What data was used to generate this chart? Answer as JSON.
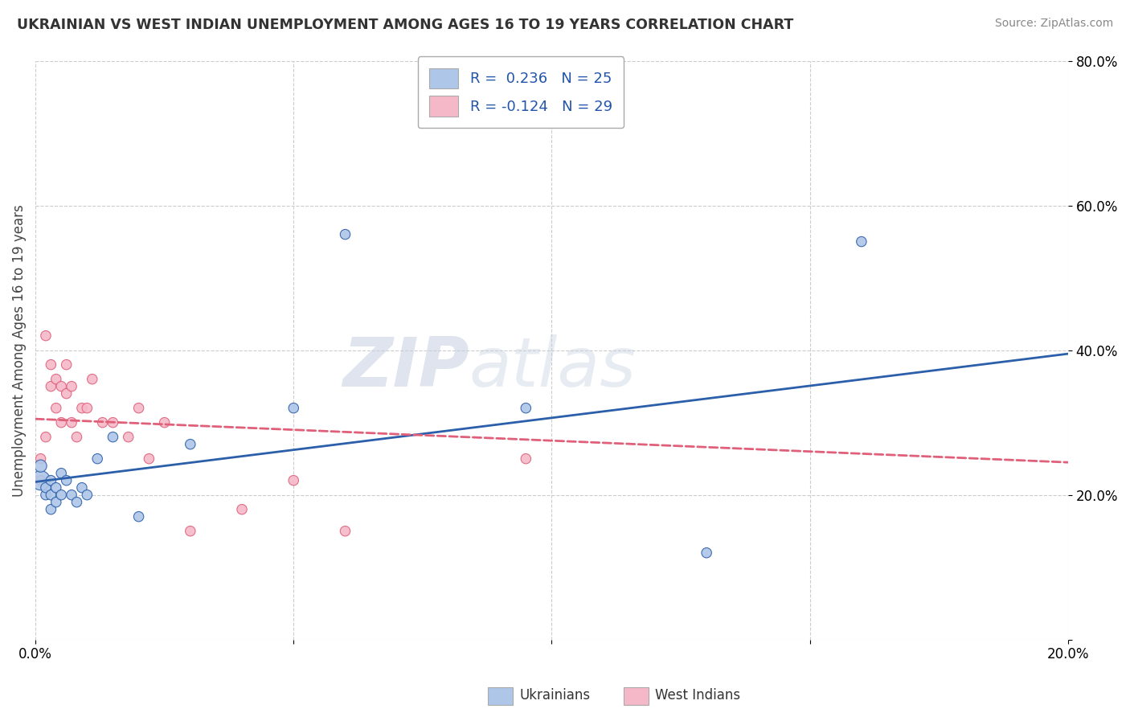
{
  "title": "UKRAINIAN VS WEST INDIAN UNEMPLOYMENT AMONG AGES 16 TO 19 YEARS CORRELATION CHART",
  "source": "Source: ZipAtlas.com",
  "ylabel": "Unemployment Among Ages 16 to 19 years",
  "xlabel_ukrainians": "Ukrainians",
  "xlabel_west_indians": "West Indians",
  "xlim": [
    0.0,
    0.2
  ],
  "ylim": [
    0.0,
    0.8
  ],
  "xticks": [
    0.0,
    0.05,
    0.1,
    0.15,
    0.2
  ],
  "yticks": [
    0.0,
    0.2,
    0.4,
    0.6,
    0.8
  ],
  "R_ukrainian": 0.236,
  "N_ukrainian": 25,
  "R_west_indian": -0.124,
  "N_west_indian": 29,
  "color_ukrainian": "#aec6e8",
  "color_west_indian": "#f5b8c8",
  "line_color_ukrainian": "#2c5faa",
  "line_color_west_indian": "#e0607a",
  "background_color": "#ffffff",
  "grid_color": "#cccccc",
  "ukrainian_x": [
    0.001,
    0.001,
    0.002,
    0.002,
    0.003,
    0.003,
    0.003,
    0.004,
    0.004,
    0.005,
    0.005,
    0.006,
    0.007,
    0.008,
    0.009,
    0.01,
    0.012,
    0.015,
    0.02,
    0.03,
    0.05,
    0.06,
    0.095,
    0.13,
    0.16
  ],
  "ukrainian_y": [
    0.22,
    0.24,
    0.2,
    0.21,
    0.22,
    0.2,
    0.18,
    0.19,
    0.21,
    0.23,
    0.2,
    0.22,
    0.2,
    0.19,
    0.21,
    0.2,
    0.25,
    0.28,
    0.17,
    0.27,
    0.32,
    0.56,
    0.32,
    0.12,
    0.55
  ],
  "ukrainian_size": [
    300,
    120,
    80,
    80,
    80,
    80,
    80,
    80,
    80,
    80,
    80,
    80,
    80,
    80,
    80,
    80,
    80,
    80,
    80,
    80,
    80,
    80,
    80,
    80,
    80
  ],
  "west_indian_x": [
    0.001,
    0.001,
    0.002,
    0.002,
    0.003,
    0.003,
    0.004,
    0.004,
    0.005,
    0.005,
    0.006,
    0.006,
    0.007,
    0.007,
    0.008,
    0.009,
    0.01,
    0.011,
    0.013,
    0.015,
    0.018,
    0.02,
    0.022,
    0.025,
    0.03,
    0.04,
    0.05,
    0.06,
    0.095
  ],
  "west_indian_y": [
    0.22,
    0.25,
    0.28,
    0.42,
    0.35,
    0.38,
    0.32,
    0.36,
    0.3,
    0.35,
    0.34,
    0.38,
    0.3,
    0.35,
    0.28,
    0.32,
    0.32,
    0.36,
    0.3,
    0.3,
    0.28,
    0.32,
    0.25,
    0.3,
    0.15,
    0.18,
    0.22,
    0.15,
    0.25
  ],
  "west_indian_size": [
    80,
    80,
    80,
    80,
    80,
    80,
    80,
    80,
    80,
    80,
    80,
    80,
    80,
    80,
    80,
    80,
    80,
    80,
    80,
    80,
    80,
    80,
    80,
    80,
    80,
    80,
    80,
    80,
    80
  ],
  "line_ukrainian_x0": 0.0,
  "line_ukrainian_y0": 0.218,
  "line_ukrainian_x1": 0.2,
  "line_ukrainian_y1": 0.395,
  "line_west_indian_x0": 0.0,
  "line_west_indian_y0": 0.305,
  "line_west_indian_x1": 0.2,
  "line_west_indian_y1": 0.245
}
